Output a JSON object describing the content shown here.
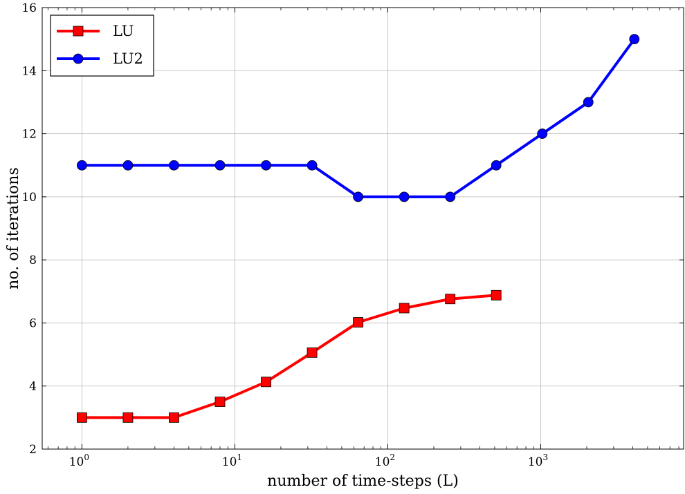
{
  "chart_data": {
    "type": "line",
    "title": "",
    "xlabel": "number of time-steps (L)",
    "ylabel": "no. of iterations",
    "xscale": "log",
    "xlim": [
      0.55,
      8600
    ],
    "ylim": [
      2,
      16
    ],
    "x_ticks": [
      {
        "value": 1,
        "base": "10",
        "exp": "0"
      },
      {
        "value": 10,
        "base": "10",
        "exp": "1"
      },
      {
        "value": 100,
        "base": "10",
        "exp": "2"
      },
      {
        "value": 1000,
        "base": "10",
        "exp": "3"
      }
    ],
    "y_ticks": [
      {
        "value": 2,
        "label": "2"
      },
      {
        "value": 4,
        "label": "4"
      },
      {
        "value": 6,
        "label": "6"
      },
      {
        "value": 8,
        "label": "8"
      },
      {
        "value": 10,
        "label": "10"
      },
      {
        "value": 12,
        "label": "12"
      },
      {
        "value": 14,
        "label": "14"
      },
      {
        "value": 16,
        "label": "16"
      }
    ],
    "grid": true,
    "legend_position": "top-left",
    "series": [
      {
        "name": "LU",
        "color": "#ff0000",
        "marker": "square",
        "x": [
          1,
          2,
          4,
          8,
          16,
          32,
          64,
          128,
          256,
          512
        ],
        "y": [
          3,
          3,
          3,
          3.5,
          4.13,
          5.06,
          6.02,
          6.47,
          6.76,
          6.88
        ]
      },
      {
        "name": "LU2",
        "color": "#0000ff",
        "marker": "circle",
        "x": [
          1,
          2,
          4,
          8,
          16,
          32,
          64,
          128,
          256,
          512,
          1024,
          2048,
          4096
        ],
        "y": [
          11,
          11,
          11,
          11,
          11,
          11,
          10,
          10,
          10,
          11,
          12,
          13,
          15
        ]
      }
    ]
  }
}
